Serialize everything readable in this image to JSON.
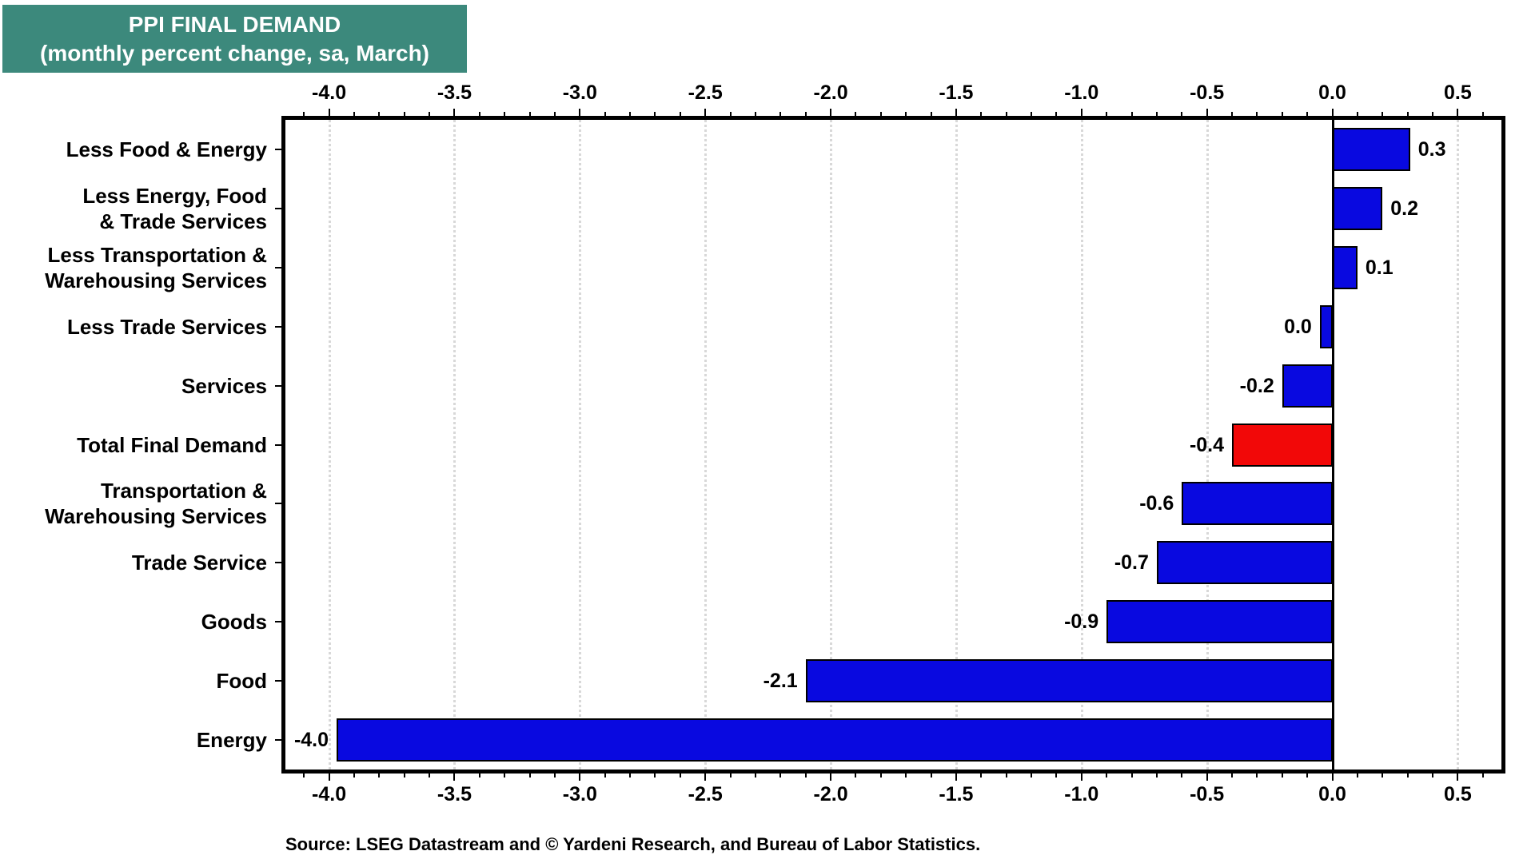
{
  "title_box": {
    "title": "PPI FINAL DEMAND",
    "subtitle": "(monthly percent change, sa, March)",
    "bg_color": "#3C897C",
    "text_color": "#FFFFFF"
  },
  "source_note": "Source: LSEG Datastream and © Yardeni Research, and Bureau of Labor Statistics.",
  "chart_data": {
    "type": "bar",
    "orientation": "horizontal",
    "title": "PPI FINAL DEMAND (monthly percent change, sa, March)",
    "categories": [
      "Less Food & Energy",
      "Less Energy, Food\n& Trade Services",
      "Less Transportation &\nWarehousing Services",
      "Less Trade Services",
      "Services",
      "Total Final Demand",
      "Transportation &\nWarehousing Services",
      "Trade Service",
      "Goods",
      "Food",
      "Energy"
    ],
    "values": [
      0.3,
      0.2,
      0.1,
      0.0,
      -0.2,
      -0.4,
      -0.6,
      -0.7,
      -0.9,
      -2.1,
      -4.0
    ],
    "value_labels": [
      "0.3",
      "0.2",
      "0.1",
      "0.0",
      "-0.2",
      "-0.4",
      "-0.6",
      "-0.7",
      "-0.9",
      "-2.1",
      "-4.0"
    ],
    "bar_extents": [
      0.31,
      0.2,
      0.1,
      -0.05,
      -0.2,
      -0.4,
      -0.6,
      -0.7,
      -0.9,
      -2.1,
      -3.97
    ],
    "highlight_index": 5,
    "colors": {
      "bar_default": "#0909E0",
      "bar_highlight": "#F20808",
      "grid": "#D8D8D8",
      "axis": "#000000",
      "text": "#000000"
    },
    "x_axis": {
      "min": -4.19,
      "max": 0.69,
      "major_ticks": [
        -4.0,
        -3.5,
        -3.0,
        -2.5,
        -2.0,
        -1.5,
        -1.0,
        -0.5,
        0.0,
        0.5
      ],
      "major_tick_labels": [
        "-4.0",
        "-3.5",
        "-3.0",
        "-2.5",
        "-2.0",
        "-1.5",
        "-1.0",
        "-0.5",
        "0.0",
        "0.5"
      ],
      "minor_tick_step": 0.1,
      "gridlines": "dotted-at-majors",
      "zero_line": true,
      "tick_labels_position": "top-and-bottom"
    },
    "legend": null
  }
}
